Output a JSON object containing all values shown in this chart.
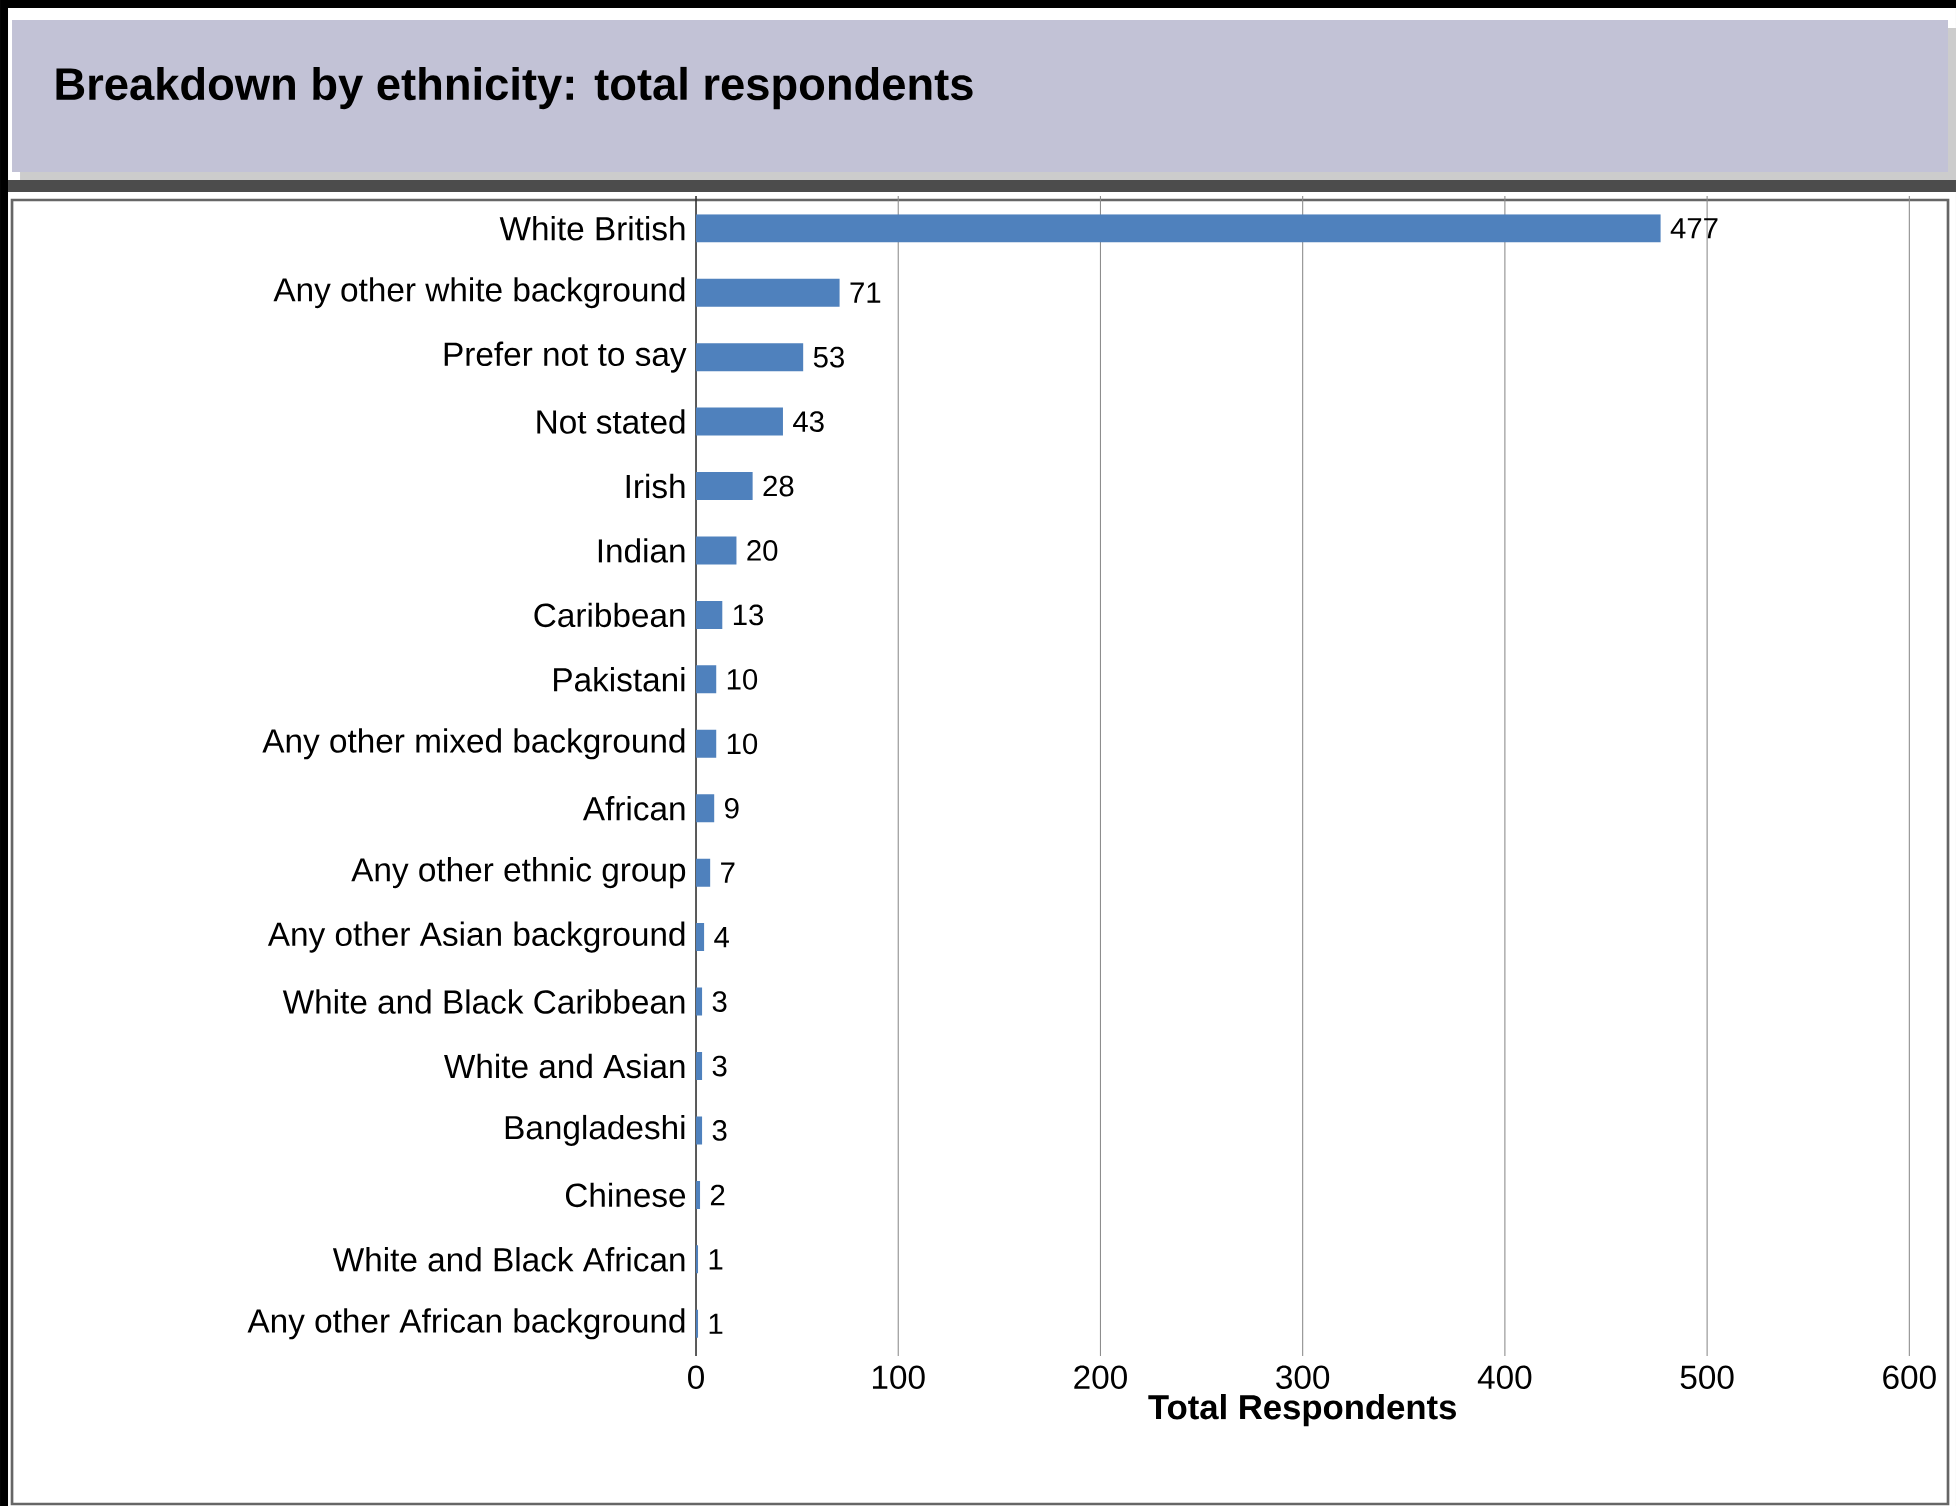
{
  "chart_data": {
    "type": "bar",
    "orientation": "horizontal",
    "title": "Breakdown by ethnicity: total respondents",
    "xlabel": "Total Respondents",
    "categories": [
      "White British",
      "Any other white background",
      "Prefer not to say",
      "Not stated",
      "Irish",
      "Indian",
      "Caribbean",
      "Pakistani",
      "Any other mixed background",
      "African",
      "Any other ethnic group",
      "Any other Asian background",
      "White and Black Caribbean",
      "White and Asian",
      "Bangladeshi",
      "Chinese",
      "White and Black African",
      "Any other African background"
    ],
    "values": [
      477,
      71,
      53,
      43,
      28,
      20,
      13,
      10,
      10,
      9,
      7,
      4,
      3,
      3,
      3,
      2,
      1,
      1
    ],
    "color": "#4f81bd",
    "xlim": [
      0,
      600
    ],
    "xticks": [
      0,
      100,
      200,
      300,
      400,
      500,
      600
    ],
    "grid": "x",
    "data_labels": true
  }
}
